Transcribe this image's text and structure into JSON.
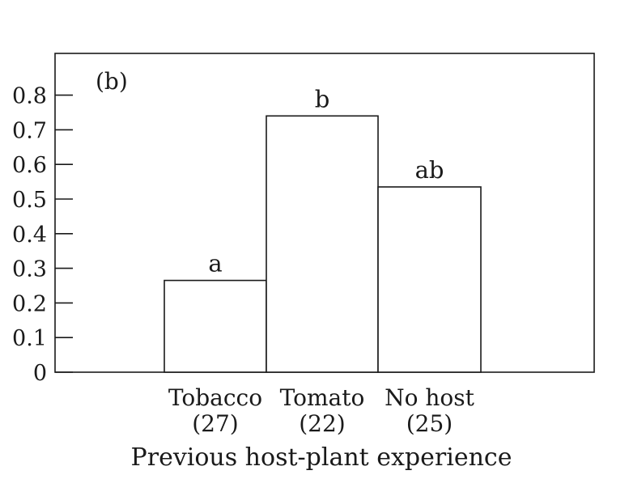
{
  "chart_data": {
    "type": "bar",
    "panel_label": "(b)",
    "categories": [
      "Tobacco",
      "Tomato",
      "No host"
    ],
    "sample_sizes": [
      "(27)",
      "(22)",
      "(25)"
    ],
    "values": [
      0.265,
      0.74,
      0.535
    ],
    "significance_labels": [
      "a",
      "b",
      "ab"
    ],
    "xlabel": "Previous host-plant experience",
    "ylabel": "",
    "ylim": [
      0,
      0.8
    ],
    "yticks": [
      0,
      0.1,
      0.2,
      0.3,
      0.4,
      0.5,
      0.6,
      0.7,
      0.8
    ],
    "ytick_labels": [
      "0",
      "0.1",
      "0.2",
      "0.3",
      "0.4",
      "0.5",
      "0.6",
      "0.7",
      "0.8"
    ],
    "bar_fill": "#ffffff",
    "stroke_color": "#1a1a1a",
    "grid": false,
    "legend": "none"
  }
}
